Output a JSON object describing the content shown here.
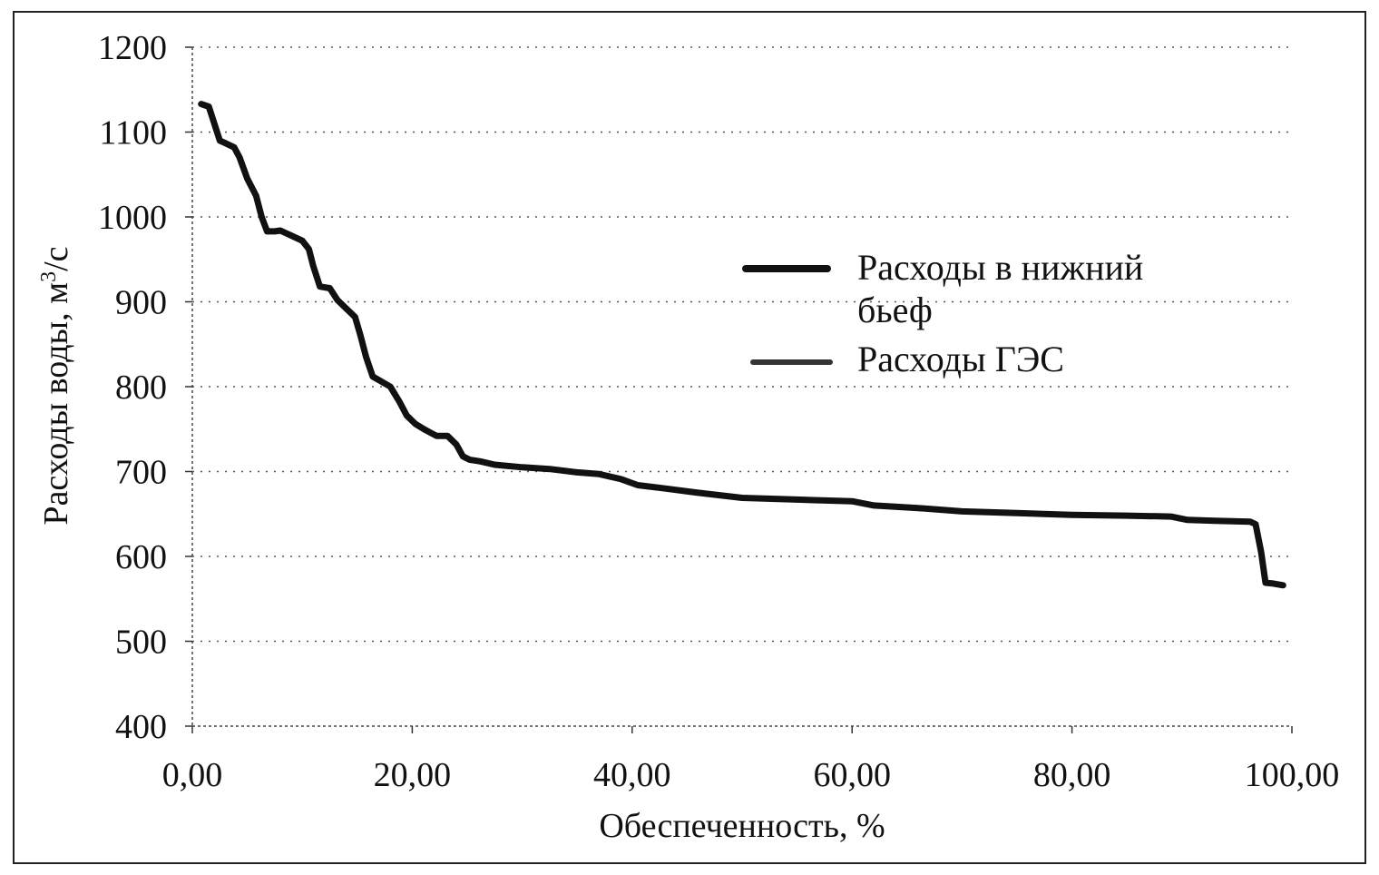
{
  "chart_data": {
    "type": "line",
    "xlabel": "Обеспеченность, %",
    "ylabel_main": "Расходы воды, м",
    "ylabel_sup": "3",
    "ylabel_tail": "/с",
    "xlim": [
      0,
      100
    ],
    "ylim": [
      400,
      1200
    ],
    "x_ticks": [
      0,
      20,
      40,
      60,
      80,
      100
    ],
    "x_tick_labels": [
      "0,00",
      "20,00",
      "40,00",
      "60,00",
      "80,00",
      "100,00"
    ],
    "y_ticks": [
      400,
      500,
      600,
      700,
      800,
      900,
      1000,
      1100,
      1200
    ],
    "y_tick_labels": [
      "400",
      "500",
      "600",
      "700",
      "800",
      "900",
      "1000",
      "1100",
      "1200"
    ],
    "grid": "horizontal-dotted",
    "legend_position": "center-right",
    "series": [
      {
        "name_line1": "Расходы в нижний",
        "name_line2": "бьеф",
        "color": "#111111",
        "points": [
          [
            0.8,
            1133
          ],
          [
            1.5,
            1130
          ],
          [
            2.0,
            1110
          ],
          [
            2.5,
            1090
          ],
          [
            3.0,
            1087
          ],
          [
            3.8,
            1082
          ],
          [
            4.3,
            1070
          ],
          [
            5.0,
            1045
          ],
          [
            5.8,
            1025
          ],
          [
            6.3,
            1000
          ],
          [
            6.8,
            983
          ],
          [
            7.5,
            983
          ],
          [
            8.0,
            984
          ],
          [
            9.0,
            978
          ],
          [
            10.0,
            972
          ],
          [
            10.6,
            962
          ],
          [
            11.0,
            942
          ],
          [
            11.6,
            918
          ],
          [
            12.5,
            916
          ],
          [
            13.2,
            902
          ],
          [
            14.0,
            892
          ],
          [
            14.8,
            882
          ],
          [
            15.3,
            860
          ],
          [
            15.8,
            835
          ],
          [
            16.4,
            812
          ],
          [
            17.2,
            806
          ],
          [
            18.0,
            800
          ],
          [
            18.8,
            783
          ],
          [
            19.5,
            766
          ],
          [
            20.3,
            756
          ],
          [
            21.2,
            749
          ],
          [
            22.2,
            742
          ],
          [
            23.2,
            742
          ],
          [
            24.0,
            732
          ],
          [
            24.6,
            718
          ],
          [
            25.2,
            714
          ],
          [
            26.2,
            712
          ],
          [
            27.5,
            708
          ],
          [
            30.0,
            705
          ],
          [
            32.5,
            703
          ],
          [
            35.0,
            699
          ],
          [
            37.0,
            697
          ],
          [
            39.0,
            691
          ],
          [
            40.5,
            684
          ],
          [
            43.0,
            680
          ],
          [
            46.0,
            675
          ],
          [
            50.0,
            669
          ],
          [
            55.0,
            667
          ],
          [
            60.0,
            665
          ],
          [
            62.0,
            660
          ],
          [
            66.0,
            657
          ],
          [
            70.0,
            653
          ],
          [
            75.0,
            651
          ],
          [
            80.0,
            649
          ],
          [
            85.0,
            648
          ],
          [
            89.0,
            647
          ],
          [
            90.5,
            643
          ],
          [
            93.0,
            642
          ],
          [
            96.2,
            641
          ],
          [
            96.7,
            638
          ],
          [
            97.2,
            605
          ],
          [
            97.6,
            569
          ],
          [
            98.3,
            568
          ],
          [
            99.2,
            566
          ]
        ]
      },
      {
        "name": "Расходы ГЭС",
        "color": "#333333",
        "points": []
      }
    ]
  }
}
